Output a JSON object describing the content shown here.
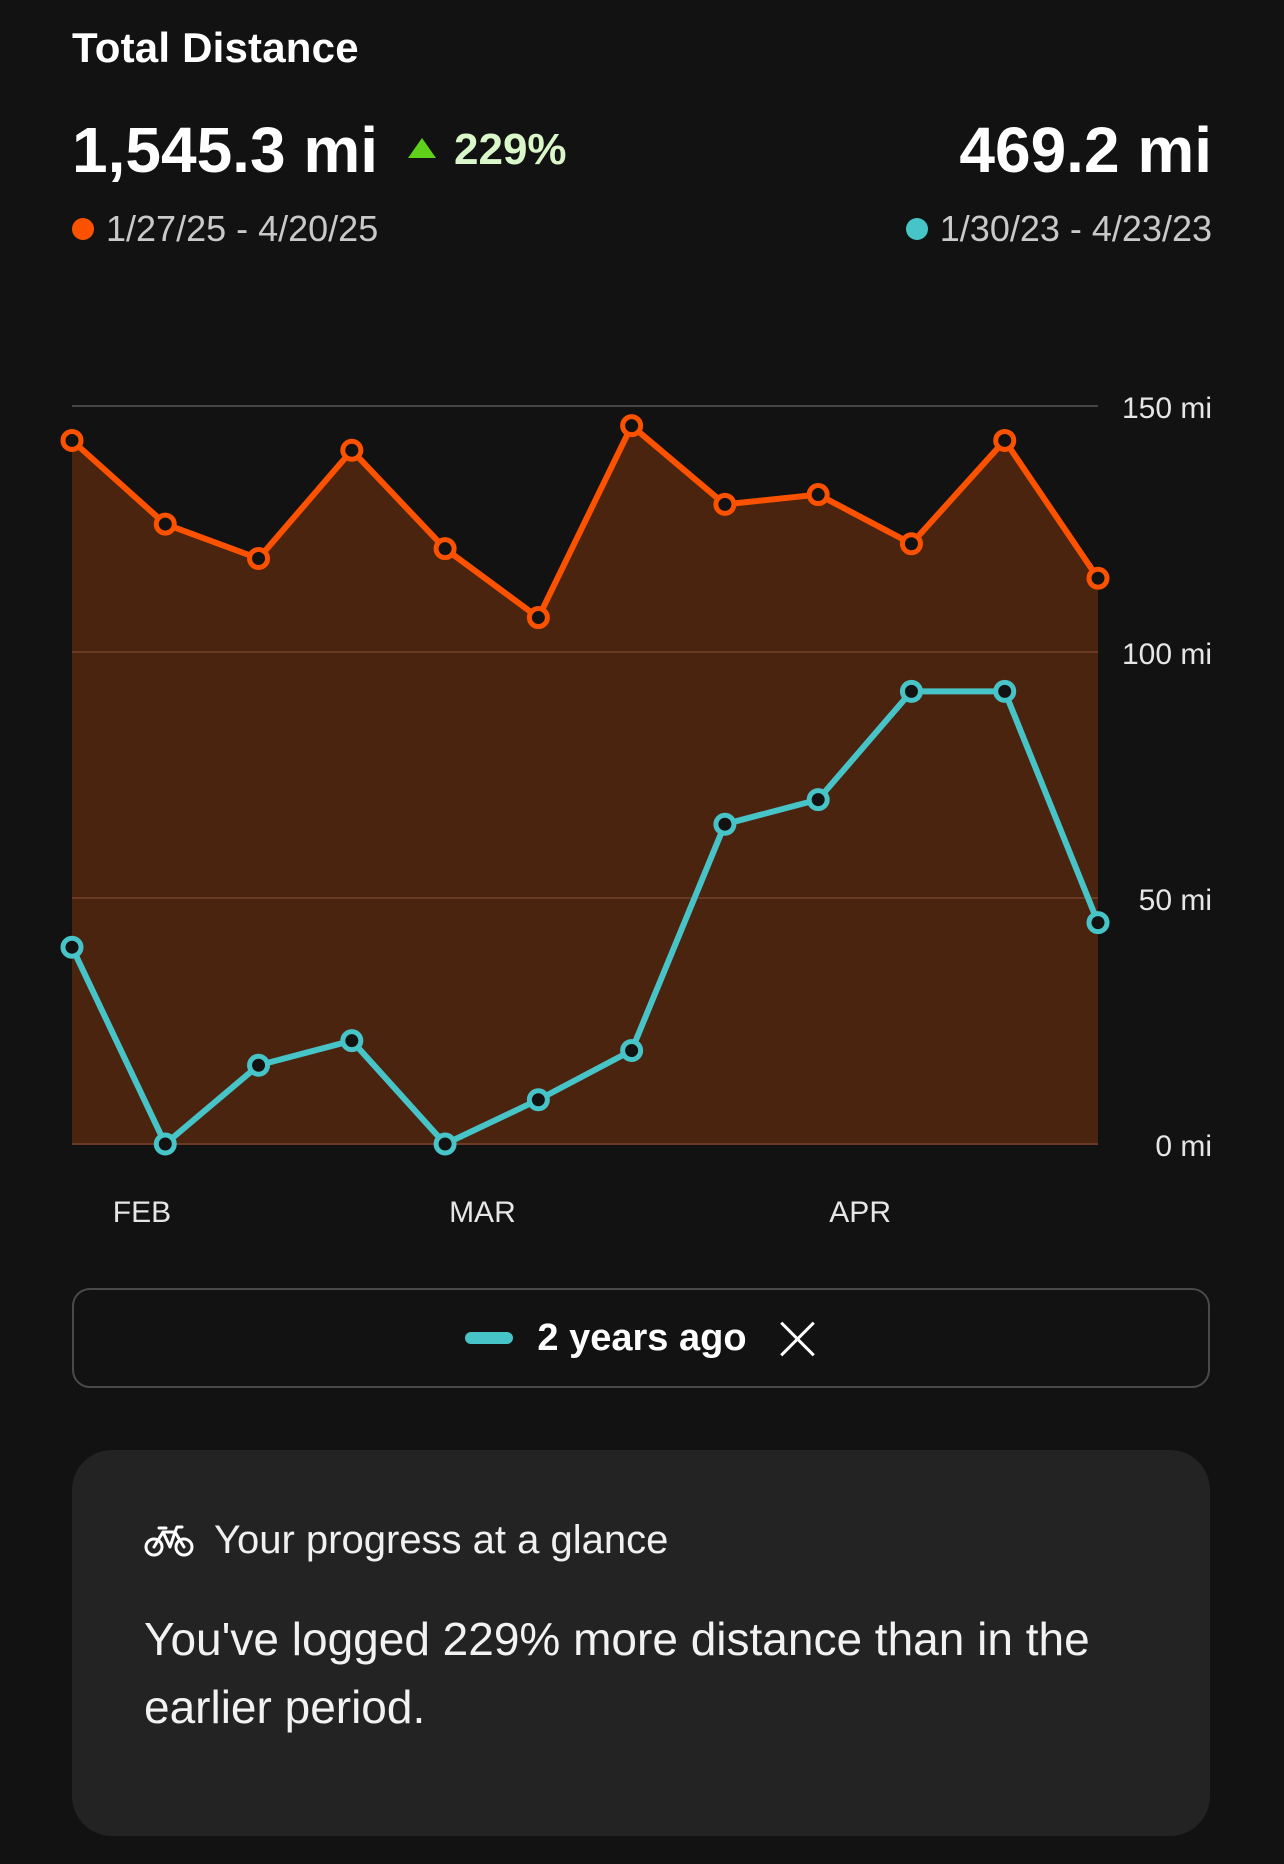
{
  "header": {
    "title": "Total Distance",
    "current_total": "1,545.3 mi",
    "change": "229%",
    "current_range": "1/27/25 - 4/20/25",
    "previous_total": "469.2 mi",
    "previous_range": "1/30/23 - 4/23/23"
  },
  "colors": {
    "current": "#fc5200",
    "previous": "#47c4c7",
    "increase": "#5fd11b"
  },
  "chart_data": {
    "type": "line",
    "x_tick_labels": [
      "FEB",
      "MAR",
      "APR"
    ],
    "y_tick_labels": [
      "150 mi",
      "100 mi",
      "50 mi",
      "0 mi"
    ],
    "ylim": [
      0,
      150
    ],
    "y_ticks": [
      150,
      100,
      50,
      0
    ],
    "grid": true,
    "series": [
      {
        "color": "#fc5200",
        "filled": true,
        "values": [
          143,
          126,
          119,
          141,
          121,
          107,
          146,
          130,
          132,
          122,
          143,
          115
        ]
      },
      {
        "color": "#47c4c7",
        "filled": false,
        "values": [
          40,
          0,
          16,
          21,
          0,
          9,
          19,
          65,
          70,
          92,
          92,
          45
        ]
      }
    ]
  },
  "comparison_chip": {
    "label": "2 years ago"
  },
  "insight_card": {
    "icon": "bicycle-icon",
    "heading": "Your progress at a glance",
    "message": "You've logged 229% more distance than in the earlier period."
  }
}
